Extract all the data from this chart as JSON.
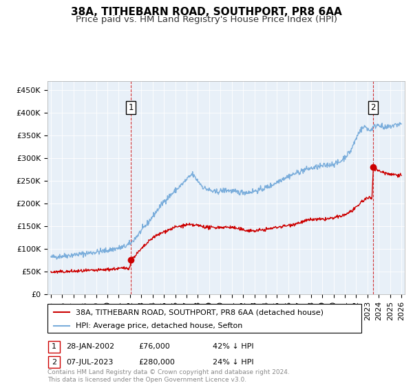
{
  "title": "38A, TITHEBARN ROAD, SOUTHPORT, PR8 6AA",
  "subtitle": "Price paid vs. HM Land Registry's House Price Index (HPI)",
  "ylabel_ticks": [
    "£0",
    "£50K",
    "£100K",
    "£150K",
    "£200K",
    "£250K",
    "£300K",
    "£350K",
    "£400K",
    "£450K"
  ],
  "ytick_vals": [
    0,
    50000,
    100000,
    150000,
    200000,
    250000,
    300000,
    350000,
    400000,
    450000
  ],
  "ylim": [
    0,
    470000
  ],
  "xlim_start": 1994.7,
  "xlim_end": 2026.3,
  "hpi_color": "#7aaddb",
  "price_color": "#cc0000",
  "marker1_date": 2002.08,
  "marker1_price": 76000,
  "marker2_date": 2023.52,
  "marker2_price": 280000,
  "vline1_x": 2002.08,
  "vline2_x": 2023.52,
  "legend_label1": "38A, TITHEBARN ROAD, SOUTHPORT, PR8 6AA (detached house)",
  "legend_label2": "HPI: Average price, detached house, Sefton",
  "note1_num": "1",
  "note1_date": "28-JAN-2002",
  "note1_price": "£76,000",
  "note1_hpi": "42% ↓ HPI",
  "note2_num": "2",
  "note2_date": "07-JUL-2023",
  "note2_price": "£280,000",
  "note2_hpi": "24% ↓ HPI",
  "footer": "Contains HM Land Registry data © Crown copyright and database right 2024.\nThis data is licensed under the Open Government Licence v3.0.",
  "bg_color": "#ffffff",
  "plot_bg_color": "#e8f0f8",
  "grid_color": "#ffffff",
  "title_fontsize": 11,
  "subtitle_fontsize": 9.5,
  "tick_fontsize": 8
}
